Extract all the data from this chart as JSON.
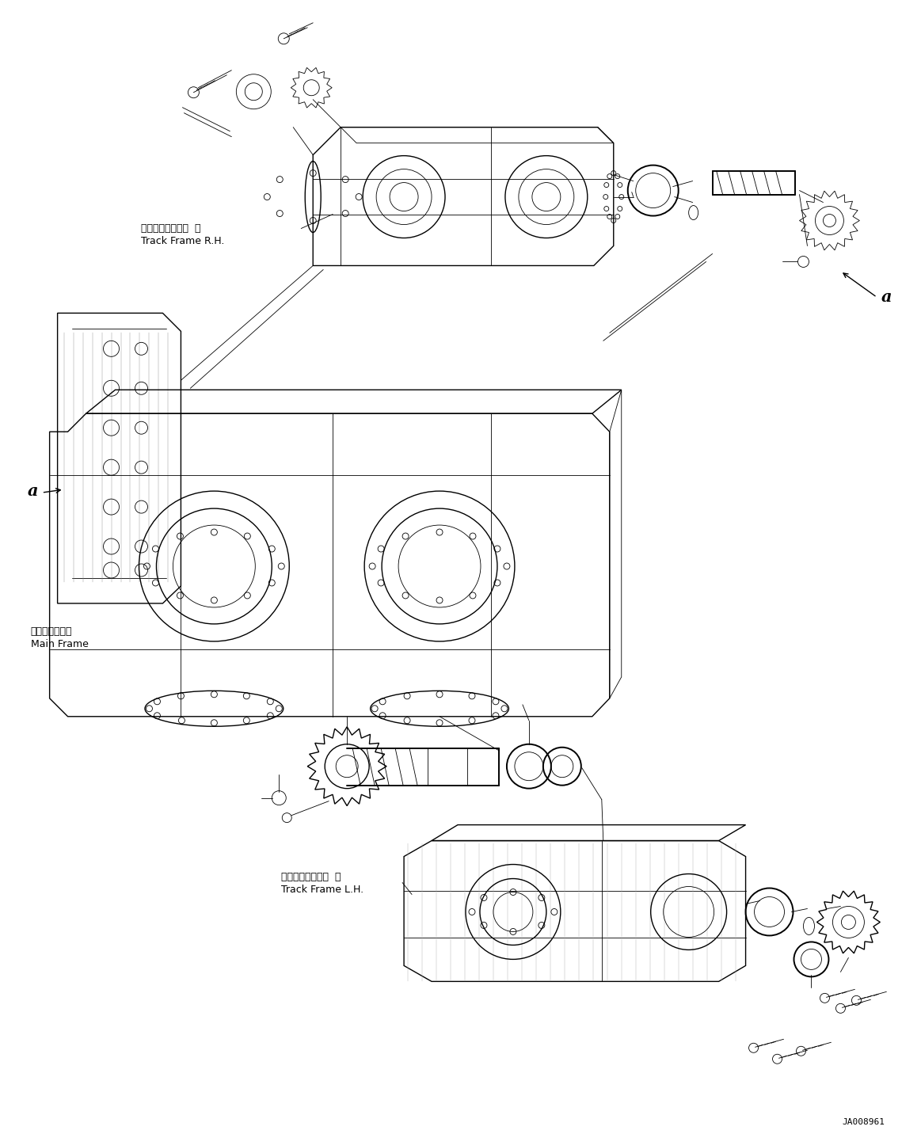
{
  "title": "",
  "bg_color": "#ffffff",
  "line_color": "#000000",
  "figsize": [
    11.63,
    14.32
  ],
  "dpi": 100,
  "labels": {
    "track_frame_rh_ja": "トラックフレーム  右",
    "track_frame_rh_en": "Track Frame R.H.",
    "track_frame_lh_ja": "トラックフレーム  左",
    "track_frame_lh_en": "Track Frame L.H.",
    "main_frame_ja": "メインフレーム",
    "main_frame_en": "Main Frame",
    "ref_a": "a",
    "drawing_number": "JA008961"
  }
}
